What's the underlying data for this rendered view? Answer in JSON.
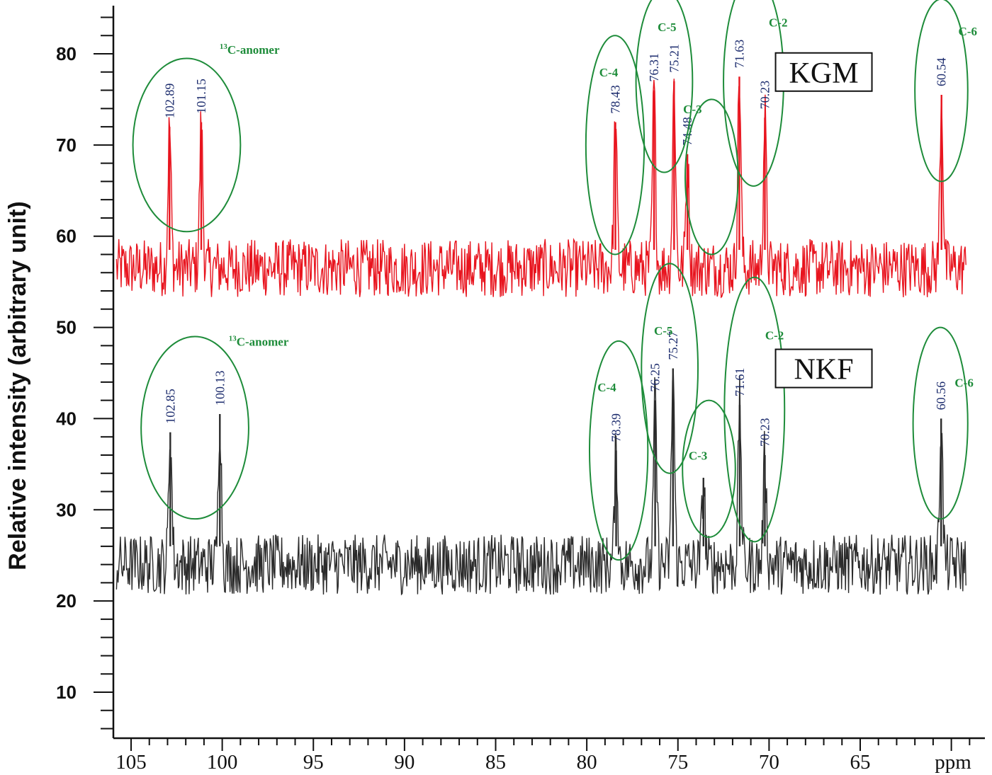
{
  "chart_data": {
    "type": "line",
    "xlabel": "ppm",
    "ylabel": "Relative intensity (arbitrary unit)",
    "xlim": [
      106,
      59
    ],
    "ylim": [
      4,
      85
    ],
    "x_reversed": true,
    "x_ticks": [
      "105",
      "100",
      "95",
      "90",
      "85",
      "80",
      "75",
      "70",
      "65"
    ],
    "x_unit_label": "ppm",
    "y_ticks": [
      "10",
      "20",
      "30",
      "40",
      "50",
      "60",
      "70",
      "80"
    ],
    "series": [
      {
        "name": "KGM",
        "color": "#e8141e",
        "baseline": 56.5,
        "noise_amplitude": 3.2,
        "peaks": [
          {
            "x": 102.89,
            "y": 72.0,
            "label": "102.89"
          },
          {
            "x": 101.15,
            "y": 72.5,
            "label": "101.15"
          },
          {
            "x": 78.43,
            "y": 72.5,
            "label": "78.43"
          },
          {
            "x": 76.31,
            "y": 76.0,
            "label": "76.31"
          },
          {
            "x": 75.21,
            "y": 77.0,
            "label": "75.21"
          },
          {
            "x": 74.48,
            "y": 69.0,
            "label": "74.48"
          },
          {
            "x": 71.63,
            "y": 77.5,
            "label": "71.63"
          },
          {
            "x": 70.23,
            "y": 73.0,
            "label": "70.23"
          },
          {
            "x": 60.54,
            "y": 75.5,
            "label": "60.54"
          }
        ],
        "assignments": [
          {
            "label": "13C-anomer"
          },
          {
            "label": "C-4"
          },
          {
            "label": "C-5"
          },
          {
            "label": "C-3"
          },
          {
            "label": "C-2"
          },
          {
            "label": "C-6"
          }
        ]
      },
      {
        "name": "NKF",
        "color": "#2b2b2b",
        "baseline": 24.0,
        "noise_amplitude": 3.3,
        "peaks": [
          {
            "x": 102.85,
            "y": 38.5,
            "label": "102.85"
          },
          {
            "x": 100.13,
            "y": 40.5,
            "label": "100.13"
          },
          {
            "x": 78.39,
            "y": 36.5,
            "label": "78.39"
          },
          {
            "x": 76.25,
            "y": 42.0,
            "label": "76.25"
          },
          {
            "x": 75.27,
            "y": 45.5,
            "label": "75.27"
          },
          {
            "x": 73.6,
            "y": 33.5,
            "label": ""
          },
          {
            "x": 71.61,
            "y": 41.5,
            "label": "71.61"
          },
          {
            "x": 70.23,
            "y": 36.0,
            "label": "70.23"
          },
          {
            "x": 60.56,
            "y": 40.0,
            "label": "60.56"
          }
        ],
        "assignments": [
          {
            "label": "13C-anomer"
          },
          {
            "label": "C-4"
          },
          {
            "label": "C-5"
          },
          {
            "label": "C-3"
          },
          {
            "label": "C-2"
          },
          {
            "label": "C-6"
          }
        ]
      }
    ],
    "grid": false,
    "legend": "boxed labels at top-right of each trace"
  },
  "colors": {
    "assignment_green": "#1e8c3a",
    "peak_label_navy": "#1a2a6c"
  }
}
